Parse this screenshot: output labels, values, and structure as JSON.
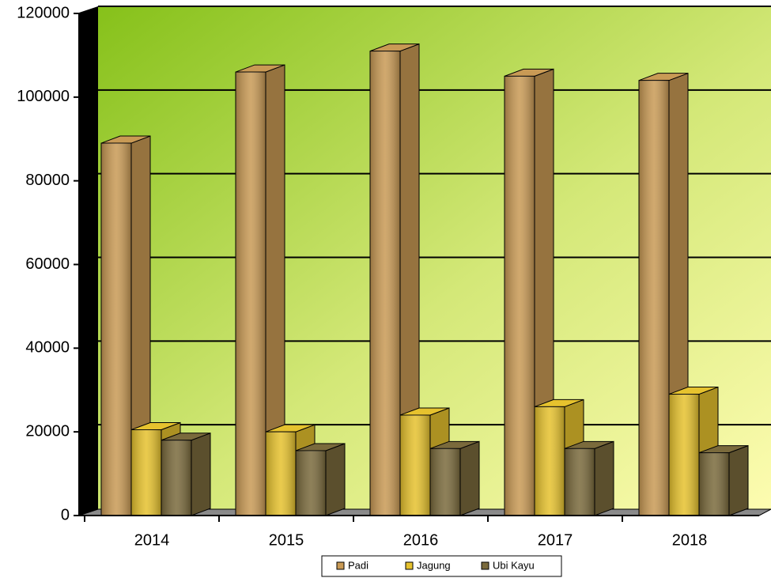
{
  "chart_data": {
    "type": "bar3d",
    "categories": [
      "2014",
      "2015",
      "2016",
      "2017",
      "2018"
    ],
    "series": [
      {
        "name": "Padi",
        "color": "#c99a55",
        "values": [
          89000,
          106000,
          111000,
          105000,
          104000
        ]
      },
      {
        "name": "Jagung",
        "color": "#e6c22e",
        "values": [
          20500,
          20000,
          24000,
          26000,
          29000
        ]
      },
      {
        "name": "Ubi Kayu",
        "color": "#7a6a3c",
        "values": [
          18000,
          15500,
          16000,
          16000,
          15000
        ]
      }
    ],
    "ylim": [
      0,
      120000
    ],
    "yticks": [
      0,
      20000,
      40000,
      60000,
      80000,
      100000,
      120000
    ],
    "grid": true
  }
}
